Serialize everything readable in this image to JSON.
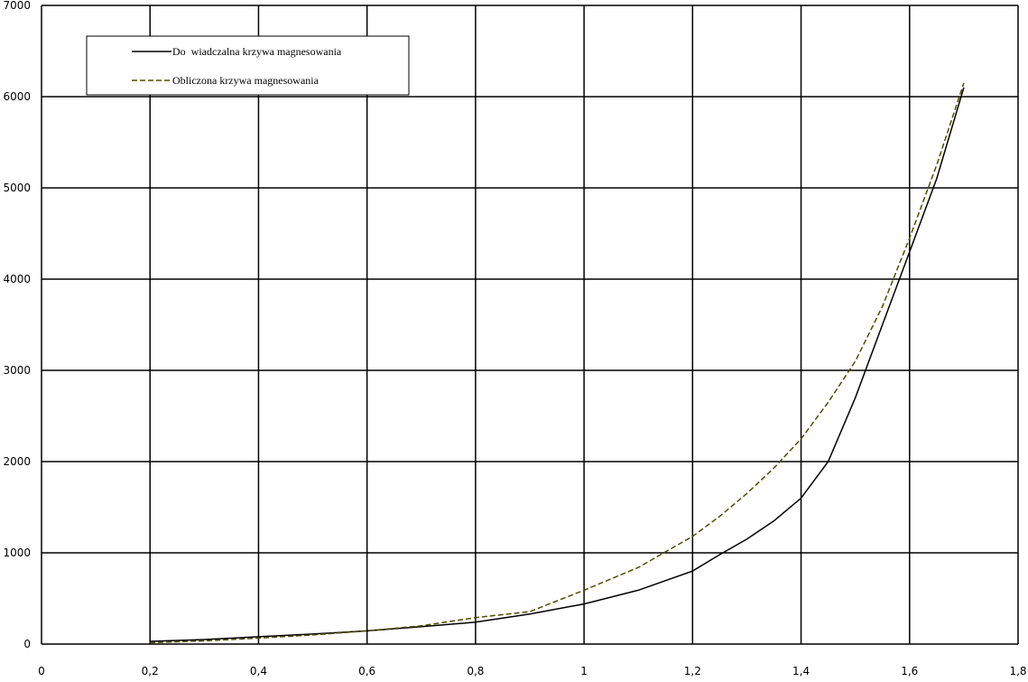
{
  "chart_data": {
    "type": "line",
    "x": [
      0.2,
      0.3,
      0.4,
      0.5,
      0.6,
      0.7,
      0.8,
      0.9,
      1.0,
      1.1,
      1.2,
      1.25,
      1.3,
      1.35,
      1.4,
      1.45,
      1.5,
      1.55,
      1.6,
      1.65,
      1.7
    ],
    "series": [
      {
        "name": "Do  wiadczalna krzywa magnesowania",
        "color": "#000000",
        "dash": false,
        "values": [
          30,
          50,
          80,
          110,
          145,
          190,
          240,
          330,
          440,
          590,
          800,
          980,
          1150,
          1350,
          1600,
          2000,
          2700,
          3500,
          4300,
          5100,
          6100
        ]
      },
      {
        "name": "Obliczona krzywa magnesowania",
        "color": "#4d4d00",
        "dash": true,
        "values": [
          15,
          35,
          65,
          100,
          145,
          200,
          290,
          355,
          590,
          840,
          1180,
          1400,
          1650,
          1930,
          2250,
          2650,
          3100,
          3700,
          4450,
          5250,
          6150
        ]
      }
    ],
    "xlim": [
      0,
      1.8
    ],
    "ylim": [
      0,
      7000
    ],
    "xticks": [
      0,
      {
        "value": 0.2,
        "label": "0,2"
      },
      {
        "value": 0.4,
        "label": "0,4"
      },
      {
        "value": 0.6,
        "label": "0,6"
      },
      {
        "value": 0.8,
        "label": "0,8"
      },
      1,
      {
        "value": 1.2,
        "label": "1,2"
      },
      {
        "value": 1.4,
        "label": "1,4"
      },
      {
        "value": 1.6,
        "label": "1,6"
      },
      {
        "value": 1.8,
        "label": "1,8"
      }
    ],
    "yticks": [
      0,
      1000,
      2000,
      3000,
      4000,
      5000,
      6000,
      7000
    ],
    "grid": true
  }
}
